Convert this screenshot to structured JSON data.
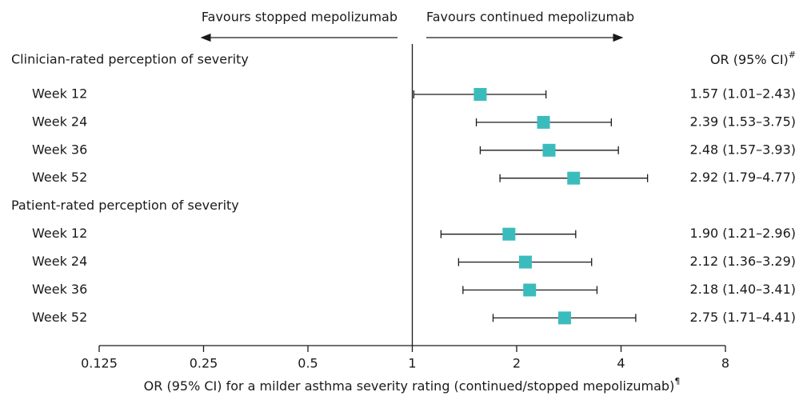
{
  "chart_data": {
    "type": "forest",
    "left_direction_label": "Favours stopped mepolizumab",
    "right_direction_label": "Favours continued mepolizumab",
    "column_header": "OR (95% CI)",
    "column_header_note": "#",
    "xlabel": "OR (95% CI) for a milder asthma severity rating (continued/stopped mepolizumab)",
    "xlabel_note": "¶",
    "xscale": "log",
    "xlim": [
      0.125,
      8
    ],
    "xticks": [
      0.125,
      0.25,
      0.5,
      1,
      2,
      4,
      8
    ],
    "reference_line": 1,
    "color": "#3bbcbc",
    "groups": [
      {
        "name": "Clinician-rated perception of severity",
        "rows": [
          {
            "label": "Week 12",
            "value": 1.57,
            "lower": 1.01,
            "upper": 2.43,
            "value_label": "1.57 (1.01–2.43)"
          },
          {
            "label": "Week 24",
            "value": 2.39,
            "lower": 1.53,
            "upper": 3.75,
            "value_label": "2.39 (1.53–3.75)"
          },
          {
            "label": "Week 36",
            "value": 2.48,
            "lower": 1.57,
            "upper": 3.93,
            "value_label": "2.48 (1.57–3.93)"
          },
          {
            "label": "Week 52",
            "value": 2.92,
            "lower": 1.79,
            "upper": 4.77,
            "value_label": "2.92 (1.79–4.77)"
          }
        ]
      },
      {
        "name": "Patient-rated perception of severity",
        "rows": [
          {
            "label": "Week 12",
            "value": 1.9,
            "lower": 1.21,
            "upper": 2.96,
            "value_label": "1.90 (1.21–2.96)"
          },
          {
            "label": "Week 24",
            "value": 2.12,
            "lower": 1.36,
            "upper": 3.29,
            "value_label": "2.12 (1.36–3.29)"
          },
          {
            "label": "Week 36",
            "value": 2.18,
            "lower": 1.4,
            "upper": 3.41,
            "value_label": "2.18 (1.40–3.41)"
          },
          {
            "label": "Week 52",
            "value": 2.75,
            "lower": 1.71,
            "upper": 4.41,
            "value_label": "2.75 (1.71–4.41)"
          }
        ]
      }
    ]
  }
}
